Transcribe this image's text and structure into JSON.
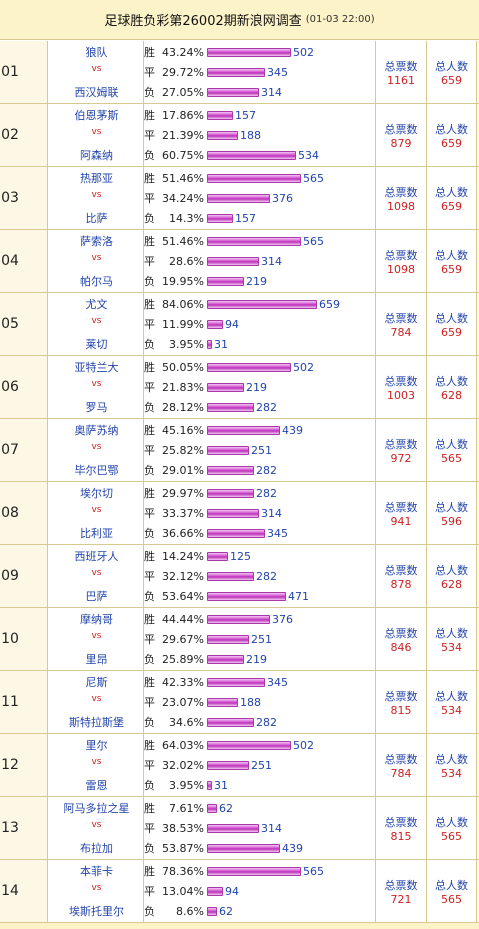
{
  "header": {
    "title": "足球胜负彩第26002期新浪网调查",
    "time": "(01-03 22:00)"
  },
  "labels": {
    "win": "胜",
    "draw": "平",
    "lose": "负",
    "vs": "vs",
    "total_votes": "总票数",
    "total_users": "总人数"
  },
  "max_count": 659,
  "matches": [
    {
      "num": "01",
      "home": "狼队",
      "away": "西汉姆联",
      "win": {
        "pct": "43.24%",
        "count": "502"
      },
      "draw": {
        "pct": "29.72%",
        "count": "345"
      },
      "lose": {
        "pct": "27.05%",
        "count": "314"
      },
      "votes": "1161",
      "users": "659"
    },
    {
      "num": "02",
      "home": "伯恩茅斯",
      "away": "阿森纳",
      "win": {
        "pct": "17.86%",
        "count": "157"
      },
      "draw": {
        "pct": "21.39%",
        "count": "188"
      },
      "lose": {
        "pct": "60.75%",
        "count": "534"
      },
      "votes": "879",
      "users": "659"
    },
    {
      "num": "03",
      "home": "热那亚",
      "away": "比萨",
      "win": {
        "pct": "51.46%",
        "count": "565"
      },
      "draw": {
        "pct": "34.24%",
        "count": "376"
      },
      "lose": {
        "pct": "14.3%",
        "count": "157"
      },
      "votes": "1098",
      "users": "659"
    },
    {
      "num": "04",
      "home": "萨索洛",
      "away": "帕尔马",
      "win": {
        "pct": "51.46%",
        "count": "565"
      },
      "draw": {
        "pct": "28.6%",
        "count": "314"
      },
      "lose": {
        "pct": "19.95%",
        "count": "219"
      },
      "votes": "1098",
      "users": "659"
    },
    {
      "num": "05",
      "home": "尤文",
      "away": "莱切",
      "win": {
        "pct": "84.06%",
        "count": "659"
      },
      "draw": {
        "pct": "11.99%",
        "count": "94"
      },
      "lose": {
        "pct": "3.95%",
        "count": "31"
      },
      "votes": "784",
      "users": "659"
    },
    {
      "num": "06",
      "home": "亚特兰大",
      "away": "罗马",
      "win": {
        "pct": "50.05%",
        "count": "502"
      },
      "draw": {
        "pct": "21.83%",
        "count": "219"
      },
      "lose": {
        "pct": "28.12%",
        "count": "282"
      },
      "votes": "1003",
      "users": "628"
    },
    {
      "num": "07",
      "home": "奥萨苏纳",
      "away": "毕尔巴鄂",
      "win": {
        "pct": "45.16%",
        "count": "439"
      },
      "draw": {
        "pct": "25.82%",
        "count": "251"
      },
      "lose": {
        "pct": "29.01%",
        "count": "282"
      },
      "votes": "972",
      "users": "565"
    },
    {
      "num": "08",
      "home": "埃尔切",
      "away": "比利亚",
      "win": {
        "pct": "29.97%",
        "count": "282"
      },
      "draw": {
        "pct": "33.37%",
        "count": "314"
      },
      "lose": {
        "pct": "36.66%",
        "count": "345"
      },
      "votes": "941",
      "users": "596"
    },
    {
      "num": "09",
      "home": "西班牙人",
      "away": "巴萨",
      "win": {
        "pct": "14.24%",
        "count": "125"
      },
      "draw": {
        "pct": "32.12%",
        "count": "282"
      },
      "lose": {
        "pct": "53.64%",
        "count": "471"
      },
      "votes": "878",
      "users": "628"
    },
    {
      "num": "10",
      "home": "摩纳哥",
      "away": "里昂",
      "win": {
        "pct": "44.44%",
        "count": "376"
      },
      "draw": {
        "pct": "29.67%",
        "count": "251"
      },
      "lose": {
        "pct": "25.89%",
        "count": "219"
      },
      "votes": "846",
      "users": "534"
    },
    {
      "num": "11",
      "home": "尼斯",
      "away": "斯特拉斯堡",
      "win": {
        "pct": "42.33%",
        "count": "345"
      },
      "draw": {
        "pct": "23.07%",
        "count": "188"
      },
      "lose": {
        "pct": "34.6%",
        "count": "282"
      },
      "votes": "815",
      "users": "534"
    },
    {
      "num": "12",
      "home": "里尔",
      "away": "雷恩",
      "win": {
        "pct": "64.03%",
        "count": "502"
      },
      "draw": {
        "pct": "32.02%",
        "count": "251"
      },
      "lose": {
        "pct": "3.95%",
        "count": "31"
      },
      "votes": "784",
      "users": "534"
    },
    {
      "num": "13",
      "home": "阿马多拉之星",
      "away": "布拉加",
      "win": {
        "pct": "7.61%",
        "count": "62"
      },
      "draw": {
        "pct": "38.53%",
        "count": "314"
      },
      "lose": {
        "pct": "53.87%",
        "count": "439"
      },
      "votes": "815",
      "users": "565"
    },
    {
      "num": "14",
      "home": "本菲卡",
      "away": "埃斯托里尔",
      "win": {
        "pct": "78.36%",
        "count": "565"
      },
      "draw": {
        "pct": "13.04%",
        "count": "94"
      },
      "lose": {
        "pct": "8.6%",
        "count": "62"
      },
      "votes": "721",
      "users": "565"
    }
  ]
}
